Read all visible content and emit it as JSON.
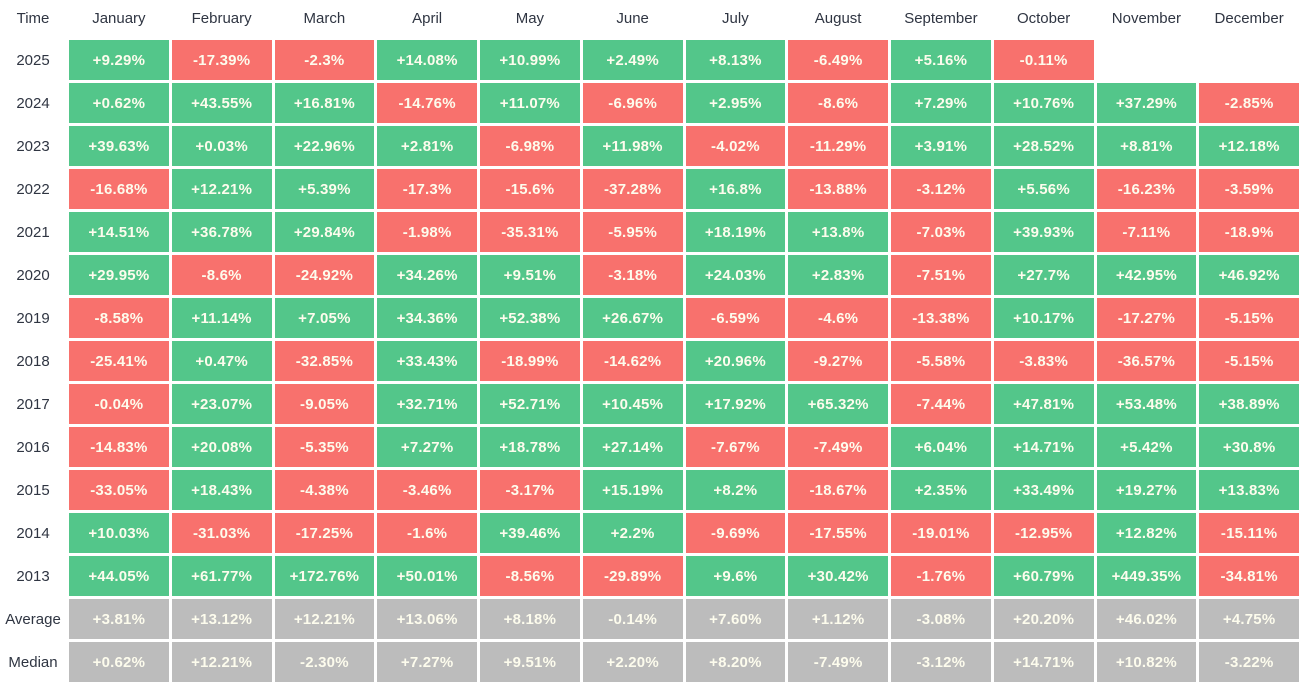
{
  "table": {
    "corner_label": "Time",
    "months": [
      "January",
      "February",
      "March",
      "April",
      "May",
      "June",
      "July",
      "August",
      "September",
      "October",
      "November",
      "December"
    ],
    "rows": [
      {
        "label": "2025",
        "type": "year",
        "values": [
          "+9.29%",
          "-17.39%",
          "-2.3%",
          "+14.08%",
          "+10.99%",
          "+2.49%",
          "+8.13%",
          "-6.49%",
          "+5.16%",
          "-0.11%",
          "",
          ""
        ]
      },
      {
        "label": "2024",
        "type": "year",
        "values": [
          "+0.62%",
          "+43.55%",
          "+16.81%",
          "-14.76%",
          "+11.07%",
          "-6.96%",
          "+2.95%",
          "-8.6%",
          "+7.29%",
          "+10.76%",
          "+37.29%",
          "-2.85%"
        ]
      },
      {
        "label": "2023",
        "type": "year",
        "values": [
          "+39.63%",
          "+0.03%",
          "+22.96%",
          "+2.81%",
          "-6.98%",
          "+11.98%",
          "-4.02%",
          "-11.29%",
          "+3.91%",
          "+28.52%",
          "+8.81%",
          "+12.18%"
        ]
      },
      {
        "label": "2022",
        "type": "year",
        "values": [
          "-16.68%",
          "+12.21%",
          "+5.39%",
          "-17.3%",
          "-15.6%",
          "-37.28%",
          "+16.8%",
          "-13.88%",
          "-3.12%",
          "+5.56%",
          "-16.23%",
          "-3.59%"
        ]
      },
      {
        "label": "2021",
        "type": "year",
        "values": [
          "+14.51%",
          "+36.78%",
          "+29.84%",
          "-1.98%",
          "-35.31%",
          "-5.95%",
          "+18.19%",
          "+13.8%",
          "-7.03%",
          "+39.93%",
          "-7.11%",
          "-18.9%"
        ]
      },
      {
        "label": "2020",
        "type": "year",
        "values": [
          "+29.95%",
          "-8.6%",
          "-24.92%",
          "+34.26%",
          "+9.51%",
          "-3.18%",
          "+24.03%",
          "+2.83%",
          "-7.51%",
          "+27.7%",
          "+42.95%",
          "+46.92%"
        ]
      },
      {
        "label": "2019",
        "type": "year",
        "values": [
          "-8.58%",
          "+11.14%",
          "+7.05%",
          "+34.36%",
          "+52.38%",
          "+26.67%",
          "-6.59%",
          "-4.6%",
          "-13.38%",
          "+10.17%",
          "-17.27%",
          "-5.15%"
        ]
      },
      {
        "label": "2018",
        "type": "year",
        "values": [
          "-25.41%",
          "+0.47%",
          "-32.85%",
          "+33.43%",
          "-18.99%",
          "-14.62%",
          "+20.96%",
          "-9.27%",
          "-5.58%",
          "-3.83%",
          "-36.57%",
          "-5.15%"
        ]
      },
      {
        "label": "2017",
        "type": "year",
        "values": [
          "-0.04%",
          "+23.07%",
          "-9.05%",
          "+32.71%",
          "+52.71%",
          "+10.45%",
          "+17.92%",
          "+65.32%",
          "-7.44%",
          "+47.81%",
          "+53.48%",
          "+38.89%"
        ]
      },
      {
        "label": "2016",
        "type": "year",
        "values": [
          "-14.83%",
          "+20.08%",
          "-5.35%",
          "+7.27%",
          "+18.78%",
          "+27.14%",
          "-7.67%",
          "-7.49%",
          "+6.04%",
          "+14.71%",
          "+5.42%",
          "+30.8%"
        ]
      },
      {
        "label": "2015",
        "type": "year",
        "values": [
          "-33.05%",
          "+18.43%",
          "-4.38%",
          "-3.46%",
          "-3.17%",
          "+15.19%",
          "+8.2%",
          "-18.67%",
          "+2.35%",
          "+33.49%",
          "+19.27%",
          "+13.83%"
        ]
      },
      {
        "label": "2014",
        "type": "year",
        "values": [
          "+10.03%",
          "-31.03%",
          "-17.25%",
          "-1.6%",
          "+39.46%",
          "+2.2%",
          "-9.69%",
          "-17.55%",
          "-19.01%",
          "-12.95%",
          "+12.82%",
          "-15.11%"
        ]
      },
      {
        "label": "2013",
        "type": "year",
        "values": [
          "+44.05%",
          "+61.77%",
          "+172.76%",
          "+50.01%",
          "-8.56%",
          "-29.89%",
          "+9.6%",
          "+30.42%",
          "-1.76%",
          "+60.79%",
          "+449.35%",
          "-34.81%"
        ]
      },
      {
        "label": "Average",
        "type": "summary",
        "values": [
          "+3.81%",
          "+13.12%",
          "+12.21%",
          "+13.06%",
          "+8.18%",
          "-0.14%",
          "+7.60%",
          "+1.12%",
          "-3.08%",
          "+20.20%",
          "+46.02%",
          "+4.75%"
        ]
      },
      {
        "label": "Median",
        "type": "summary",
        "values": [
          "+0.62%",
          "+12.21%",
          "-2.30%",
          "+7.27%",
          "+9.51%",
          "+2.20%",
          "+8.20%",
          "-7.49%",
          "-3.12%",
          "+14.71%",
          "+10.82%",
          "-3.22%"
        ]
      }
    ],
    "colors": {
      "positive": "#53c68a",
      "negative": "#f8716d",
      "summary": "#bcbcbc",
      "cell_text": "#fdfced",
      "label_text": "#2f3542"
    }
  },
  "chart_data": {
    "type": "heatmap",
    "x_categories": [
      "January",
      "February",
      "March",
      "April",
      "May",
      "June",
      "July",
      "August",
      "September",
      "October",
      "November",
      "December"
    ],
    "y_categories": [
      "2025",
      "2024",
      "2023",
      "2022",
      "2021",
      "2020",
      "2019",
      "2018",
      "2017",
      "2016",
      "2015",
      "2014",
      "2013",
      "Average",
      "Median"
    ],
    "unit": "percent",
    "color_rule": "green = positive return, red = negative return, gray = summary rows (Average/Median)",
    "values": [
      [
        9.29,
        -17.39,
        -2.3,
        14.08,
        10.99,
        2.49,
        8.13,
        -6.49,
        5.16,
        -0.11,
        null,
        null
      ],
      [
        0.62,
        43.55,
        16.81,
        -14.76,
        11.07,
        -6.96,
        2.95,
        -8.6,
        7.29,
        10.76,
        37.29,
        -2.85
      ],
      [
        39.63,
        0.03,
        22.96,
        2.81,
        -6.98,
        11.98,
        -4.02,
        -11.29,
        3.91,
        28.52,
        8.81,
        12.18
      ],
      [
        -16.68,
        12.21,
        5.39,
        -17.3,
        -15.6,
        -37.28,
        16.8,
        -13.88,
        -3.12,
        5.56,
        -16.23,
        -3.59
      ],
      [
        14.51,
        36.78,
        29.84,
        -1.98,
        -35.31,
        -5.95,
        18.19,
        13.8,
        -7.03,
        39.93,
        -7.11,
        -18.9
      ],
      [
        29.95,
        -8.6,
        -24.92,
        34.26,
        9.51,
        -3.18,
        24.03,
        2.83,
        -7.51,
        27.7,
        42.95,
        46.92
      ],
      [
        -8.58,
        11.14,
        7.05,
        34.36,
        52.38,
        26.67,
        -6.59,
        -4.6,
        -13.38,
        10.17,
        -17.27,
        -5.15
      ],
      [
        -25.41,
        0.47,
        -32.85,
        33.43,
        -18.99,
        -14.62,
        20.96,
        -9.27,
        -5.58,
        -3.83,
        -36.57,
        -5.15
      ],
      [
        -0.04,
        23.07,
        -9.05,
        32.71,
        52.71,
        10.45,
        17.92,
        65.32,
        -7.44,
        47.81,
        53.48,
        38.89
      ],
      [
        -14.83,
        20.08,
        -5.35,
        7.27,
        18.78,
        27.14,
        -7.67,
        -7.49,
        6.04,
        14.71,
        5.42,
        30.8
      ],
      [
        -33.05,
        18.43,
        -4.38,
        -3.46,
        -3.17,
        15.19,
        8.2,
        -18.67,
        2.35,
        33.49,
        19.27,
        13.83
      ],
      [
        10.03,
        -31.03,
        -17.25,
        -1.6,
        39.46,
        2.2,
        -9.69,
        -17.55,
        -19.01,
        -12.95,
        12.82,
        -15.11
      ],
      [
        44.05,
        61.77,
        172.76,
        50.01,
        -8.56,
        -29.89,
        9.6,
        30.42,
        -1.76,
        60.79,
        449.35,
        -34.81
      ],
      [
        3.81,
        13.12,
        12.21,
        13.06,
        8.18,
        -0.14,
        7.6,
        1.12,
        -3.08,
        20.2,
        46.02,
        4.75
      ],
      [
        0.62,
        12.21,
        -2.3,
        7.27,
        9.51,
        2.2,
        8.2,
        -7.49,
        -3.12,
        14.71,
        10.82,
        -3.22
      ]
    ]
  }
}
